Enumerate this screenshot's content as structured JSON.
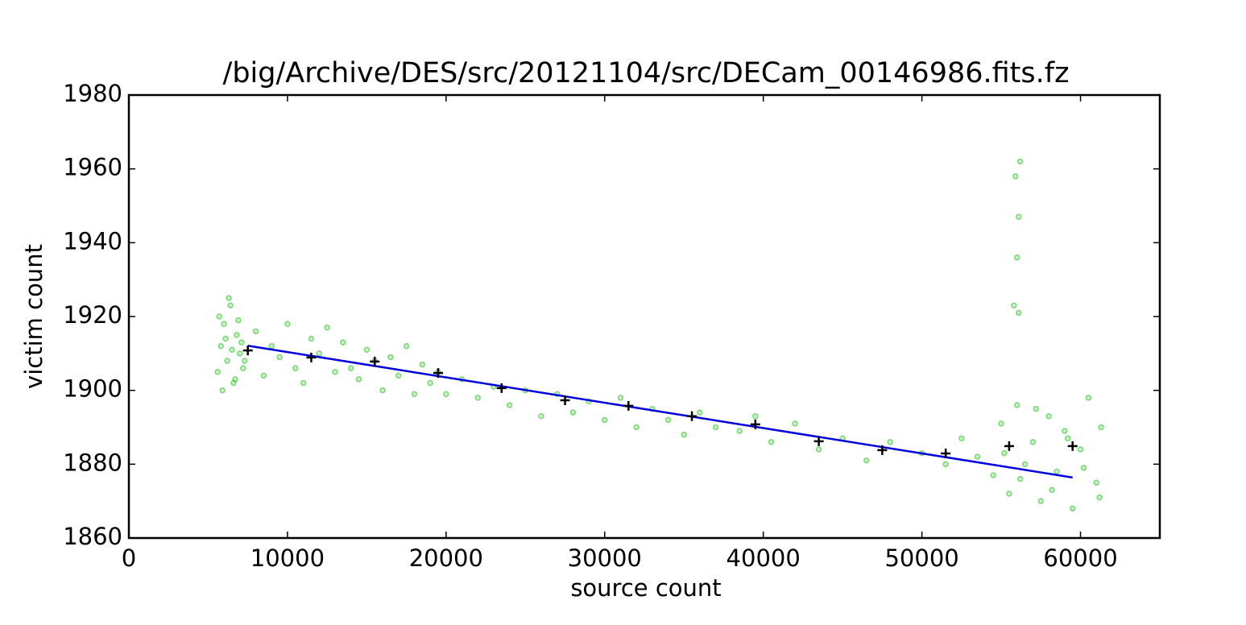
{
  "chart_data": {
    "type": "scatter",
    "title": "/big/Archive/DES/src/20121104/src/DECam_00146986.fits.fz",
    "xlabel": "source count",
    "ylabel": "victim count",
    "xlim": [
      0,
      65000
    ],
    "ylim": [
      1860,
      1980
    ],
    "xticks": [
      0,
      10000,
      20000,
      30000,
      40000,
      50000,
      60000
    ],
    "yticks": [
      1860,
      1880,
      1900,
      1920,
      1940,
      1960,
      1980
    ],
    "points": {
      "color": "#22c01a",
      "x": [
        5600,
        5800,
        6000,
        6200,
        6400,
        6600,
        6800,
        7000,
        7200,
        5700,
        5900,
        6100,
        6300,
        6500,
        6700,
        6900,
        7100,
        7300,
        8000,
        8500,
        9000,
        9500,
        10000,
        10500,
        11000,
        11500,
        12000,
        12500,
        13000,
        13500,
        14000,
        14500,
        15000,
        15500,
        16000,
        16500,
        17000,
        17500,
        18000,
        18500,
        19000,
        19500,
        20000,
        21000,
        22000,
        23000,
        24000,
        25000,
        26000,
        27000,
        28000,
        29000,
        30000,
        31000,
        32000,
        33000,
        34000,
        35000,
        36000,
        37000,
        38500,
        39500,
        40500,
        42000,
        43500,
        45000,
        46500,
        48000,
        50000,
        51500,
        52500,
        53500,
        54500,
        55000,
        55500,
        56000,
        56500,
        57000,
        57500,
        58000,
        58500,
        59000,
        59500,
        60000,
        60500,
        61000,
        61300,
        55200,
        56200,
        57200,
        58200,
        59200,
        60200,
        61200,
        56200,
        55900,
        56100,
        56000,
        55800,
        56100
      ],
      "y": [
        1905,
        1912,
        1918,
        1908,
        1923,
        1902,
        1915,
        1910,
        1906,
        1920,
        1900,
        1914,
        1925,
        1911,
        1903,
        1919,
        1913,
        1908,
        1916,
        1904,
        1912,
        1909,
        1918,
        1906,
        1902,
        1914,
        1910,
        1917,
        1905,
        1913,
        1906,
        1903,
        1911,
        1908,
        1900,
        1909,
        1904,
        1912,
        1899,
        1907,
        1902,
        1905,
        1899,
        1903,
        1898,
        1901,
        1896,
        1900,
        1893,
        1899,
        1894,
        1897,
        1892,
        1898,
        1890,
        1895,
        1892,
        1888,
        1894,
        1890,
        1889,
        1893,
        1886,
        1891,
        1884,
        1887,
        1881,
        1886,
        1883,
        1880,
        1887,
        1882,
        1877,
        1891,
        1872,
        1896,
        1880,
        1886,
        1870,
        1893,
        1878,
        1889,
        1868,
        1884,
        1898,
        1875,
        1890,
        1883,
        1876,
        1895,
        1873,
        1887,
        1879,
        1871,
        1962,
        1958,
        1947,
        1936,
        1923,
        1921
      ]
    },
    "means": {
      "color": "#000000",
      "x": [
        7500,
        11500,
        15500,
        19500,
        23500,
        27500,
        31500,
        35500,
        39500,
        43500,
        47500,
        51500,
        55500,
        59500
      ],
      "y": [
        1910.8,
        1908.9,
        1907.8,
        1904.7,
        1900.6,
        1897.3,
        1895.8,
        1893,
        1890.8,
        1886.2,
        1883.8,
        1882.9,
        1884.9,
        1884.9
      ]
    },
    "fit": {
      "color": "#0000dd",
      "x": [
        7500,
        59500
      ],
      "y": [
        1912.1,
        1876.4
      ]
    }
  }
}
